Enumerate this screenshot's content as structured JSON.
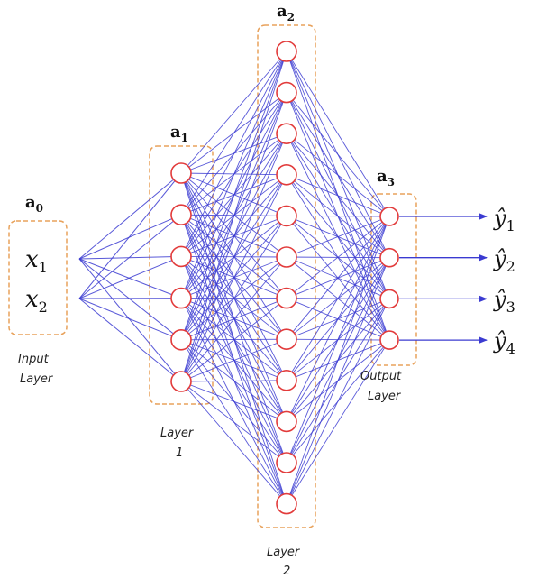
{
  "colors": {
    "edge": "#3b3bd1",
    "node_stroke": "#e23b3b",
    "node_fill": "#ffffff",
    "box_stroke": "#e8a25c",
    "output_arrow": "#3b3bd1"
  },
  "layers": [
    {
      "id": "a0",
      "symbol": "a",
      "subscript": "0",
      "caption_lines": [
        "Input",
        "Layer"
      ],
      "nodes": 2,
      "node_labels": [
        {
          "base": "x",
          "sub": "1"
        },
        {
          "base": "x",
          "sub": "2"
        }
      ]
    },
    {
      "id": "a1",
      "symbol": "a",
      "subscript": "1",
      "caption_lines": [
        "Layer",
        "1"
      ],
      "nodes": 6
    },
    {
      "id": "a2",
      "symbol": "a",
      "subscript": "2",
      "caption_lines": [
        "Layer",
        "2"
      ],
      "nodes": 12
    },
    {
      "id": "a3",
      "symbol": "a",
      "subscript": "3",
      "caption_lines": [
        "Output",
        "Layer"
      ],
      "nodes": 4
    }
  ],
  "outputs": [
    {
      "base": "ŷ",
      "sub": "1"
    },
    {
      "base": "ŷ",
      "sub": "2"
    },
    {
      "base": "ŷ",
      "sub": "3"
    },
    {
      "base": "ŷ",
      "sub": "4"
    }
  ]
}
